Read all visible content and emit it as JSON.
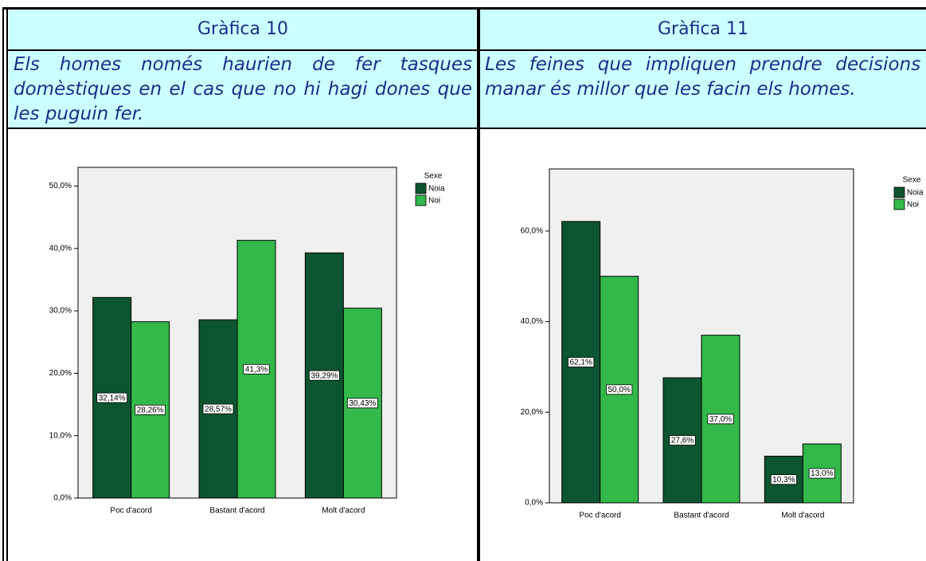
{
  "table": {
    "rows": [
      [
        "Gràfica 10",
        "Gràfica 11"
      ],
      [
        "Els homes només haurien de fer tasques domèstiques en el cas que no hi hagi dones que les puguin fer.",
        "Les feines que impliquen prendre decisions o manar és millor que les facin els homes."
      ]
    ]
  },
  "chart_data": [
    {
      "type": "bar",
      "legend_title": "Sexe",
      "legend": "top-right",
      "categories": [
        "Poc d'acord",
        "Bastant d'acord",
        "Molt d'acord"
      ],
      "series": [
        {
          "name": "Noia",
          "color": "#0b5530",
          "values": [
            32.14,
            28.57,
            39.29
          ],
          "value_labels": [
            "32,14%",
            "28,57%",
            "39,29%"
          ]
        },
        {
          "name": "Noi",
          "color": "#33b84a",
          "values": [
            28.26,
            41.3,
            30.43
          ],
          "value_labels": [
            "28,26%",
            "41,3%",
            "30,43%"
          ]
        }
      ],
      "ylim": [
        0,
        53
      ],
      "yticks": [
        {
          "value": 0,
          "label": "0,0%"
        },
        {
          "value": 10,
          "label": "10,0%"
        },
        {
          "value": 20,
          "label": "20,0%"
        },
        {
          "value": 30,
          "label": "30,0%"
        },
        {
          "value": 40,
          "label": "40,0%"
        },
        {
          "value": 50,
          "label": "50,0%"
        }
      ]
    },
    {
      "type": "bar",
      "legend_title": "Sexe",
      "legend": "top-right",
      "categories": [
        "Poc d'acord",
        "Bastant d'acord",
        "Molt d'acord"
      ],
      "series": [
        {
          "name": "Noia",
          "color": "#0b5530",
          "values": [
            62.1,
            27.6,
            10.3
          ],
          "value_labels": [
            "62,1%",
            "27,6%",
            "10,3%"
          ]
        },
        {
          "name": "Noi",
          "color": "#33b84a",
          "values": [
            50.0,
            37.0,
            13.0
          ],
          "value_labels": [
            "50,0%",
            "37,0%",
            "13,0%"
          ]
        }
      ],
      "ylim": [
        0,
        73.7
      ],
      "yticks": [
        {
          "value": 0,
          "label": "0,0%"
        },
        {
          "value": 20,
          "label": "20,0%"
        },
        {
          "value": 40,
          "label": "40,0%"
        },
        {
          "value": 60,
          "label": "60,0%"
        }
      ]
    }
  ]
}
